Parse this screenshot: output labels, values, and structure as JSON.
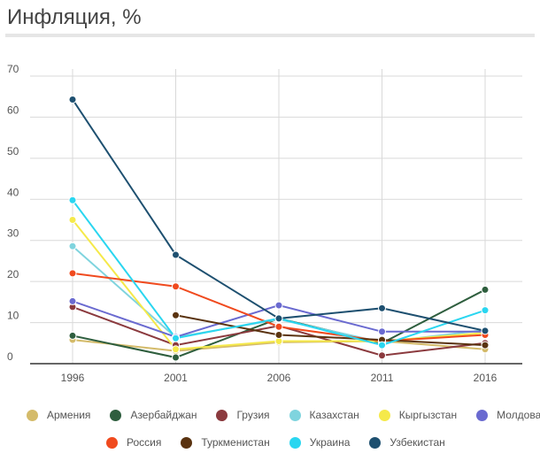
{
  "chart_data": {
    "type": "line",
    "title": "Инфляция, %",
    "x": [
      "1996",
      "2001",
      "2006",
      "2011",
      "2016"
    ],
    "ylim": [
      0,
      70
    ],
    "yticks": [
      "0",
      "10",
      "20",
      "30",
      "40",
      "50",
      "60",
      "70"
    ],
    "grid": true,
    "legend_position": "bottom",
    "series": [
      {
        "name": "Армения",
        "color": "#d4bb6a",
        "values": [
          5.8,
          3.1,
          5.2,
          5.5,
          3.5
        ]
      },
      {
        "name": "Азербайджан",
        "color": "#2e5e3e",
        "values": [
          6.8,
          1.5,
          11.0,
          5.0,
          18.0
        ]
      },
      {
        "name": "Грузия",
        "color": "#8b3a3e",
        "values": [
          13.8,
          4.5,
          9.2,
          2.0,
          5.0
        ]
      },
      {
        "name": "Казахстан",
        "color": "#7fd4de",
        "values": [
          28.6,
          6.4,
          10.8,
          5.2,
          8.2
        ]
      },
      {
        "name": "Кыргызстан",
        "color": "#f5e94a",
        "values": [
          35.0,
          3.5,
          5.5,
          5.5,
          7.5
        ]
      },
      {
        "name": "Молдова",
        "color": "#6a6ad0",
        "values": [
          15.2,
          6.5,
          14.2,
          7.8,
          7.8
        ]
      },
      {
        "name": "Россия",
        "color": "#f04a1e",
        "values": [
          22.0,
          18.8,
          9.0,
          5.5,
          7.0
        ]
      },
      {
        "name": "Туркменистан",
        "color": "#5a3310",
        "values": null
      },
      {
        "name": "Украина",
        "color": "#2ad6f0",
        "values": [
          39.8,
          6.2,
          11.0,
          4.5,
          13.0
        ]
      },
      {
        "name": "Узбекистан",
        "color": "#1e5070",
        "values": [
          64.3,
          26.5,
          11.0,
          13.5,
          8.0
        ]
      }
    ],
    "extra_series_values": {
      "Туркменистан": [
        null,
        11.8,
        7.0,
        5.8,
        4.5
      ]
    }
  }
}
